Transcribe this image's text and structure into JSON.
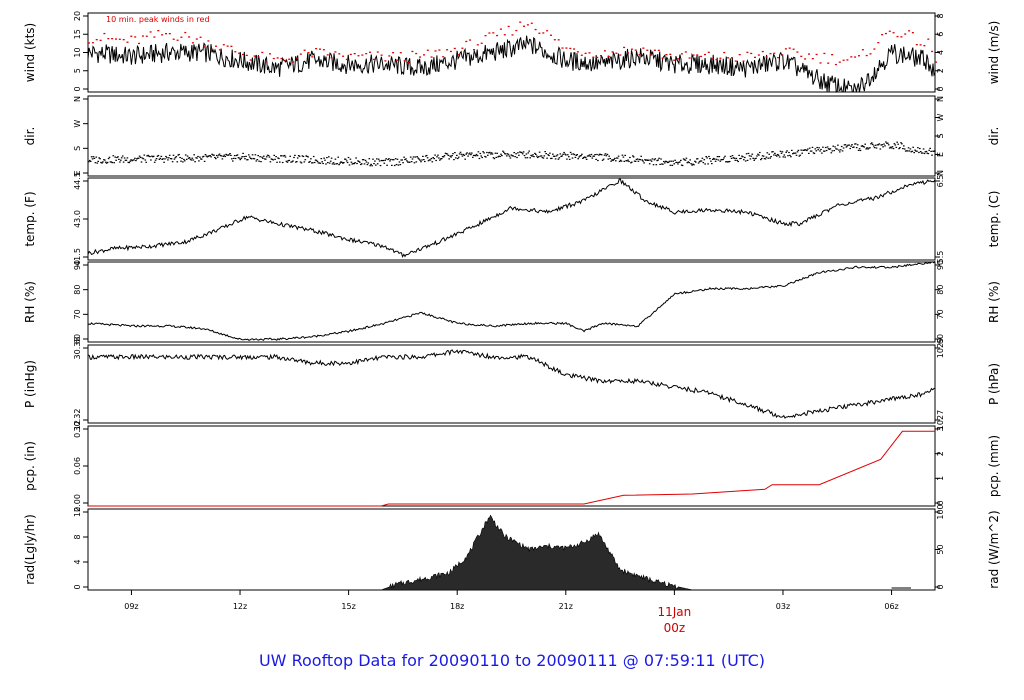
{
  "footer_title": "UW Rooftop Data for 20090110  to  20090111 @ 07:59:11  (UTC)",
  "colors": {
    "axis": "#000000",
    "trace": "#000000",
    "peak": "#e00000",
    "precip": "#e00000",
    "midnight": "#d00000",
    "footer": "#1a1ae6",
    "fill": "#2a2a2a"
  },
  "chart_data": [
    {
      "type": "line",
      "name": "wind",
      "ylabel": "wind (kts)",
      "y2label": "wind (m/s)",
      "annotation": "10 min. peak winds in red",
      "ylim": [
        0,
        20
      ],
      "yticks": [
        "0",
        "5",
        "10",
        "15",
        "20"
      ],
      "y2lim": [
        0,
        10.29
      ],
      "y2ticks": [
        "0",
        "2",
        "4",
        "6",
        "8"
      ],
      "x_hours": [
        7.8,
        9,
        10,
        11,
        12,
        13,
        14,
        15,
        16,
        17,
        18,
        19,
        20,
        21,
        22,
        23,
        24,
        25,
        26,
        27,
        28,
        29,
        30,
        31,
        31.2
      ],
      "values": [
        10,
        9,
        10,
        10,
        8,
        6,
        8,
        7,
        7,
        6,
        8,
        10,
        12,
        8,
        7,
        9,
        7,
        7,
        6,
        8,
        3,
        0,
        10,
        8,
        4
      ],
      "peak_values": [
        14,
        13,
        15,
        13,
        10,
        8,
        10,
        9,
        9,
        9,
        11,
        14,
        18,
        11,
        10,
        11,
        9,
        9,
        9,
        10,
        9,
        8,
        16,
        12,
        8
      ]
    },
    {
      "type": "scatter",
      "name": "dir",
      "ylabel": "dir.",
      "y2label": "dir.",
      "yticks": [
        "E",
        "S",
        "W",
        "N"
      ],
      "y2ticks": [
        "N",
        "E",
        "S",
        "W",
        "N"
      ],
      "x_hours": [
        7.8,
        10,
        12,
        14,
        16,
        18,
        20,
        22,
        24,
        26,
        28,
        30,
        31.2
      ],
      "values": [
        140,
        145,
        150,
        140,
        130,
        155,
        160,
        150,
        130,
        150,
        175,
        195,
        165
      ]
    },
    {
      "type": "line",
      "name": "temp",
      "ylabel": "temp. (F)",
      "y2label": "temp. (C)",
      "ylim": [
        41.0,
        44.6
      ],
      "yticks": [
        "41.5",
        "43.0",
        "44.5"
      ],
      "y2ticks": [
        "5.5",
        "6.5"
      ],
      "x_hours": [
        7.8,
        8.5,
        9.5,
        10.5,
        11.5,
        12.2,
        13,
        14,
        15,
        16,
        16.5,
        17.5,
        18.5,
        19.5,
        20.5,
        21.5,
        22.5,
        23.2,
        24,
        25,
        26,
        27,
        27.5,
        28.5,
        29.5,
        30.5,
        31.2
      ],
      "values": [
        41.3,
        41.5,
        41.6,
        41.8,
        42.4,
        42.9,
        42.6,
        42.3,
        41.9,
        41.6,
        41.2,
        41.8,
        42.5,
        43.3,
        43.1,
        43.6,
        44.5,
        43.6,
        43.1,
        43.2,
        43.1,
        42.6,
        42.6,
        43.4,
        43.7,
        44.3,
        44.5
      ]
    },
    {
      "type": "line",
      "name": "rh",
      "ylabel": "RH (%)",
      "y2label": "RH (%)",
      "ylim": [
        60,
        90
      ],
      "yticks": [
        "60",
        "70",
        "80",
        "90"
      ],
      "y2ticks": [
        "60",
        "70",
        "80",
        "90"
      ],
      "x_hours": [
        7.8,
        9,
        10,
        11,
        12,
        13,
        14,
        15,
        16,
        17,
        18,
        19,
        20,
        21,
        21.5,
        22,
        23,
        24,
        25,
        26,
        27,
        28,
        29,
        30,
        31.2
      ],
      "values": [
        67,
        66,
        66,
        65,
        61,
        61,
        62,
        64,
        67,
        71,
        67,
        66,
        67,
        67,
        64,
        67,
        66,
        78,
        80,
        80,
        81,
        86,
        88,
        88,
        90
      ]
    },
    {
      "type": "line",
      "name": "pressure",
      "ylabel": "P (inHg)",
      "y2label": "P (hPa)",
      "ylim": [
        30.3,
        30.43
      ],
      "yticks": [
        "30.32",
        "30.38"
      ],
      "y2ticks": [
        "1027",
        "1029"
      ],
      "x_hours": [
        7.8,
        9,
        10,
        11,
        12,
        13,
        14,
        15,
        16,
        17,
        18,
        19,
        20,
        21,
        22,
        23,
        24,
        25,
        26,
        27,
        28,
        29,
        30,
        31,
        31.2
      ],
      "values": [
        30.41,
        30.41,
        30.41,
        30.41,
        30.41,
        30.41,
        30.4,
        30.4,
        30.41,
        30.41,
        30.42,
        30.41,
        30.41,
        30.38,
        30.37,
        30.37,
        30.36,
        30.35,
        30.33,
        30.31,
        30.32,
        30.33,
        30.34,
        30.35,
        30.36
      ]
    },
    {
      "type": "area",
      "name": "precip",
      "ylabel": "pcp. (in)",
      "y2label": "pcp. (mm)",
      "ylim": [
        0,
        0.12
      ],
      "yticks": [
        "0.00",
        "0.06",
        "0.12"
      ],
      "y2ticks": [
        "0",
        "1",
        "2",
        "3"
      ],
      "x_hours": [
        7.8,
        15.9,
        16.1,
        21.5,
        22.6,
        24.5,
        26.5,
        26.7,
        28,
        29.7,
        30.3,
        31.2
      ],
      "values": [
        0,
        0,
        0.003,
        0.003,
        0.016,
        0.018,
        0.025,
        0.032,
        0.032,
        0.07,
        0.112,
        0.112
      ]
    },
    {
      "type": "area",
      "name": "radiation",
      "ylabel": "rad(Lgly/hr)",
      "y2label": "rad (W/m^2)",
      "ylim": [
        0,
        12
      ],
      "yticks": [
        "0",
        "4",
        "8",
        "12"
      ],
      "y2ticks": [
        "0",
        "50",
        "100"
      ],
      "x_hours": [
        7.8,
        15.9,
        16.3,
        17,
        17.8,
        18.3,
        18.9,
        19.3,
        20,
        20.5,
        21,
        21.5,
        21.9,
        22.5,
        23.5,
        24.5,
        30,
        30,
        31.2
      ],
      "values": [
        0,
        0,
        0.8,
        1.6,
        2.6,
        5.2,
        11.0,
        8.0,
        6.0,
        6.5,
        6.2,
        7.0,
        8.4,
        3.0,
        1.2,
        0,
        0,
        0.3,
        0.3
      ]
    }
  ],
  "x_axis": {
    "tick_labels": [
      "09z",
      "12z",
      "15z",
      "18z",
      "21z",
      "03z",
      "06z"
    ],
    "midnight_label_line1": "11Jan",
    "midnight_label_line2": "00z"
  }
}
